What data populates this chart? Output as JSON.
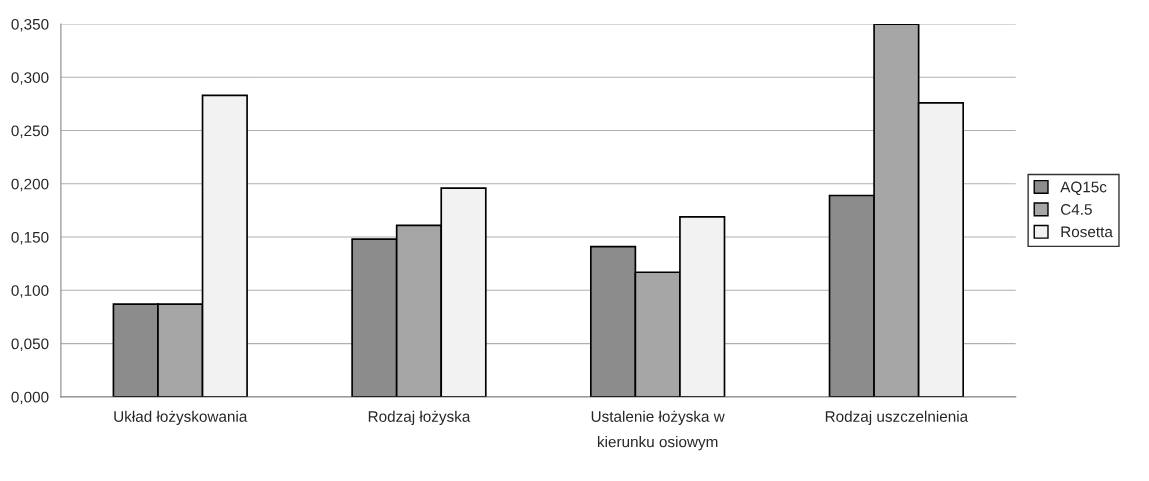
{
  "chart_data": {
    "type": "bar",
    "categories": [
      "Układ łożyskowania",
      "Rodzaj łożyska",
      "Ustalenie łożyska w\nkierunku osiowym",
      "Rodzaj uszczelnienia"
    ],
    "series": [
      {
        "name": "AQ15c",
        "color": "#8c8c8c",
        "values": [
          0.087,
          0.148,
          0.141,
          0.189
        ]
      },
      {
        "name": "C4.5",
        "color": "#a6a6a6",
        "values": [
          0.087,
          0.161,
          0.117,
          0.35
        ]
      },
      {
        "name": "Rosetta",
        "color": "#f2f2f2",
        "values": [
          0.283,
          0.196,
          0.169,
          0.276
        ]
      }
    ],
    "ylim": [
      0,
      0.35
    ],
    "yticks": [
      {
        "value": 0,
        "label": "0,000"
      },
      {
        "value": 0.05,
        "label": "0,050"
      },
      {
        "value": 0.1,
        "label": "0,100"
      },
      {
        "value": 0.15,
        "label": "0,150"
      },
      {
        "value": 0.2,
        "label": "0,200"
      },
      {
        "value": 0.25,
        "label": "0,250"
      },
      {
        "value": 0.3,
        "label": "0,300"
      },
      {
        "value": 0.35,
        "label": "0,350"
      }
    ],
    "grid": "y",
    "legend": "right"
  }
}
